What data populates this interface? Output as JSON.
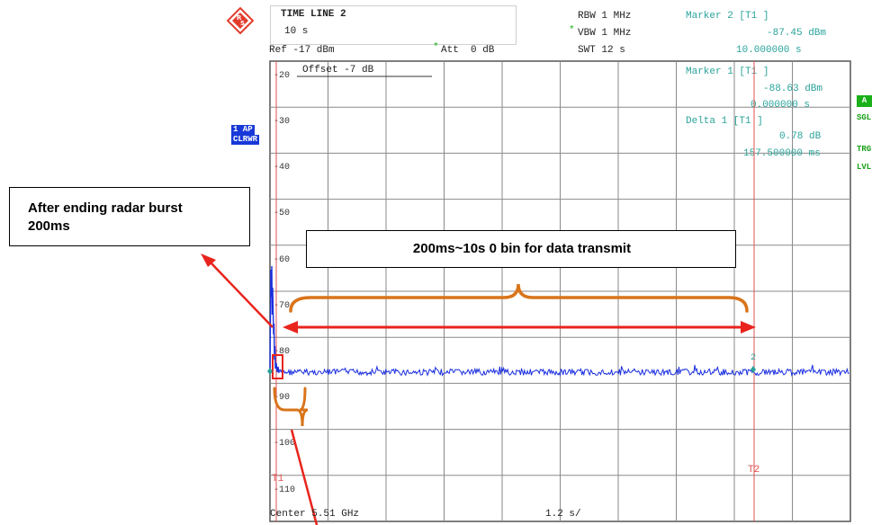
{
  "header": {
    "title": "TIME LINE 2",
    "sweep_value": "10 s",
    "ref": "Ref -17 dBm",
    "att_star": "*",
    "att": "Att  0 dB",
    "rbw": "RBW 1 MHz",
    "vbw_star": "*",
    "vbw": "VBW 1 MHz",
    "swt": "SWT 12 s"
  },
  "markers": {
    "marker2_title": "Marker 2 [T1 ]",
    "marker2_level": "-87.45 dBm",
    "marker2_time": "10.000000 s",
    "marker1_title": "Marker 1 [T1 ]",
    "marker1_level": "-88.63 dBm",
    "marker1_time": "0.000000 s",
    "delta1_title": "Delta 1 [T1 ]",
    "delta1_level": "0.78 dB",
    "delta1_time": "157.500000 ms",
    "marker_num": "2"
  },
  "grid": {
    "offset": "Offset -7 dB",
    "y_labels": [
      "-20",
      "-30",
      "-40",
      "-50",
      "-60",
      "-70",
      "-80",
      "-90",
      "-100",
      "-110"
    ],
    "t1": "T1",
    "t2": "T2"
  },
  "footer": {
    "center": "Center 5.51 GHz",
    "span": "1.2 s/"
  },
  "left_panel": {
    "trace_label": "1 AP",
    "trace_mode": "CLRWR"
  },
  "right_panel": {
    "badge": "A",
    "sgl": "SGL",
    "trg": "TRG",
    "lvl": "LVL"
  },
  "callouts": {
    "radar": "After ending radar burst 200ms",
    "data": "200ms~10s 0 bin for data transmit"
  },
  "colors": {
    "trace": "#1a2ee0",
    "grid": "#8a8a8a",
    "marker_line": "#e05050",
    "annotation_teal": "#2aa39a",
    "arrow_red": "#e8241c",
    "brace_orange": "#d9741a"
  }
}
